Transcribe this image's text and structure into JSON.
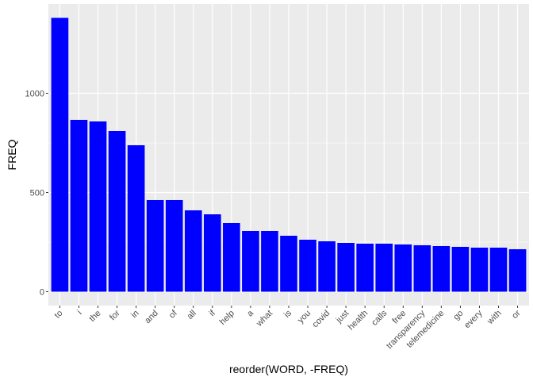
{
  "chart_data": {
    "type": "bar",
    "xlabel": "reorder(WORD, -FREQ)",
    "ylabel": "FREQ",
    "categories": [
      "to",
      "i",
      "the",
      "for",
      "in",
      "and",
      "of",
      "all",
      "if",
      "help",
      "a",
      "what",
      "is",
      "you",
      "covid",
      "just",
      "health",
      "calls",
      "free",
      "transparency",
      "telemedicine",
      "go",
      "every",
      "with",
      "or"
    ],
    "values": [
      1380,
      866,
      858,
      810,
      738,
      462,
      462,
      410,
      390,
      346,
      306,
      306,
      282,
      262,
      254,
      246,
      242,
      242,
      238,
      234,
      230,
      226,
      222,
      222,
      214
    ],
    "ylim": [
      -70,
      1450
    ],
    "yticks": [
      0,
      500,
      1000
    ],
    "ytick_labels": [
      "0",
      "500",
      "1000"
    ],
    "bar_color": "#0000ff",
    "panel_color": "#ebebeb",
    "grid_color": "#ffffff",
    "grid": true
  }
}
